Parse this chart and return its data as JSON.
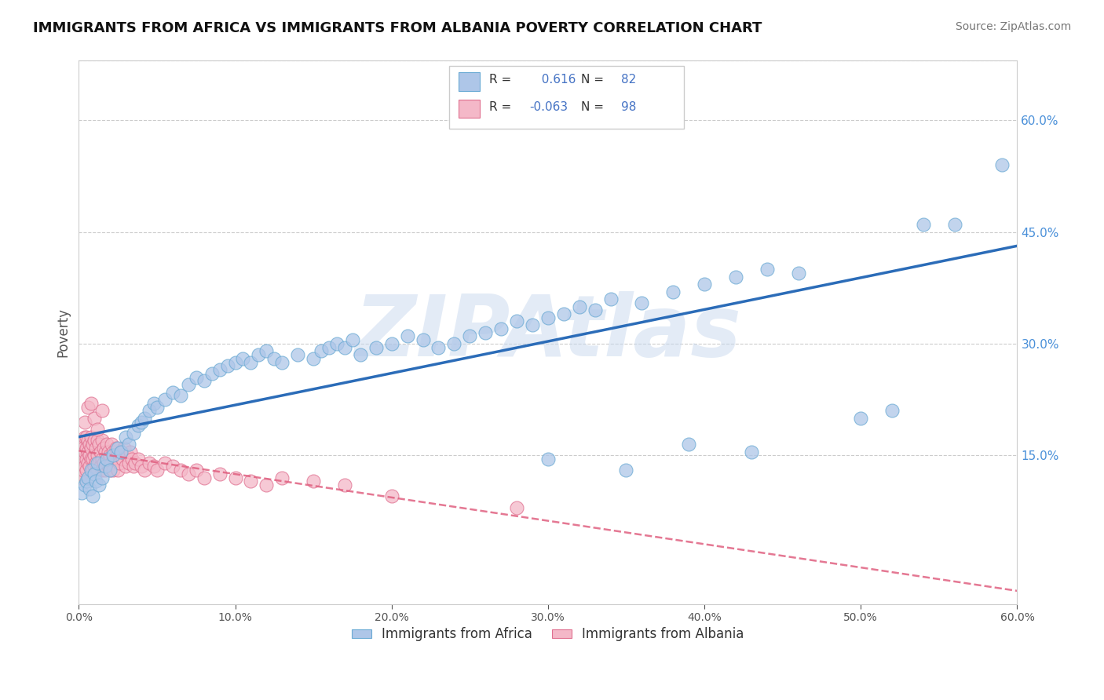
{
  "title": "IMMIGRANTS FROM AFRICA VS IMMIGRANTS FROM ALBANIA POVERTY CORRELATION CHART",
  "source": "Source: ZipAtlas.com",
  "ylabel": "Poverty",
  "watermark": "ZIPAtlas",
  "xlim": [
    0.0,
    0.6
  ],
  "ylim": [
    -0.05,
    0.68
  ],
  "xticks": [
    0.0,
    0.1,
    0.2,
    0.3,
    0.4,
    0.5,
    0.6
  ],
  "xtick_labels": [
    "0.0%",
    "10.0%",
    "20.0%",
    "30.0%",
    "40.0%",
    "50.0%",
    "60.0%"
  ],
  "yticks_right": [
    0.15,
    0.3,
    0.45,
    0.6
  ],
  "ytick_labels_right": [
    "15.0%",
    "30.0%",
    "45.0%",
    "60.0%"
  ],
  "africa_color": "#aec6e8",
  "africa_edge": "#6aaad4",
  "albania_color": "#f4b8c8",
  "albania_edge": "#e07090",
  "trendline_africa_color": "#2b6cb8",
  "trendline_albania_color": "#e06080",
  "legend_africa_label": "Immigrants from Africa",
  "legend_albania_label": "Immigrants from Albania",
  "africa_R": 0.616,
  "africa_N": 82,
  "albania_R": -0.063,
  "albania_N": 98,
  "background_color": "#ffffff",
  "grid_color": "#cccccc",
  "right_tick_color": "#4a90d9",
  "africa_scatter_x": [
    0.002,
    0.004,
    0.005,
    0.006,
    0.007,
    0.008,
    0.009,
    0.01,
    0.011,
    0.012,
    0.013,
    0.015,
    0.017,
    0.018,
    0.02,
    0.022,
    0.025,
    0.027,
    0.03,
    0.032,
    0.035,
    0.038,
    0.04,
    0.042,
    0.045,
    0.048,
    0.05,
    0.055,
    0.06,
    0.065,
    0.07,
    0.075,
    0.08,
    0.085,
    0.09,
    0.095,
    0.1,
    0.105,
    0.11,
    0.115,
    0.12,
    0.125,
    0.13,
    0.14,
    0.15,
    0.155,
    0.16,
    0.165,
    0.17,
    0.175,
    0.18,
    0.19,
    0.2,
    0.21,
    0.22,
    0.23,
    0.24,
    0.25,
    0.26,
    0.27,
    0.28,
    0.29,
    0.3,
    0.31,
    0.32,
    0.33,
    0.34,
    0.36,
    0.38,
    0.4,
    0.42,
    0.44,
    0.46,
    0.5,
    0.52,
    0.54,
    0.3,
    0.35,
    0.39,
    0.43,
    0.56,
    0.59
  ],
  "africa_scatter_y": [
    0.1,
    0.11,
    0.115,
    0.12,
    0.105,
    0.13,
    0.095,
    0.125,
    0.115,
    0.14,
    0.11,
    0.12,
    0.135,
    0.145,
    0.13,
    0.15,
    0.16,
    0.155,
    0.175,
    0.165,
    0.18,
    0.19,
    0.195,
    0.2,
    0.21,
    0.22,
    0.215,
    0.225,
    0.235,
    0.23,
    0.245,
    0.255,
    0.25,
    0.26,
    0.265,
    0.27,
    0.275,
    0.28,
    0.275,
    0.285,
    0.29,
    0.28,
    0.275,
    0.285,
    0.28,
    0.29,
    0.295,
    0.3,
    0.295,
    0.305,
    0.285,
    0.295,
    0.3,
    0.31,
    0.305,
    0.295,
    0.3,
    0.31,
    0.315,
    0.32,
    0.33,
    0.325,
    0.335,
    0.34,
    0.35,
    0.345,
    0.36,
    0.355,
    0.37,
    0.38,
    0.39,
    0.4,
    0.395,
    0.2,
    0.21,
    0.46,
    0.145,
    0.13,
    0.165,
    0.155,
    0.46,
    0.54
  ],
  "albania_scatter_x": [
    0.001,
    0.001,
    0.002,
    0.002,
    0.002,
    0.003,
    0.003,
    0.003,
    0.004,
    0.004,
    0.004,
    0.005,
    0.005,
    0.005,
    0.005,
    0.006,
    0.006,
    0.006,
    0.007,
    0.007,
    0.007,
    0.008,
    0.008,
    0.008,
    0.009,
    0.009,
    0.009,
    0.01,
    0.01,
    0.01,
    0.011,
    0.011,
    0.012,
    0.012,
    0.012,
    0.013,
    0.013,
    0.014,
    0.014,
    0.015,
    0.015,
    0.015,
    0.016,
    0.016,
    0.017,
    0.017,
    0.018,
    0.018,
    0.019,
    0.019,
    0.02,
    0.02,
    0.021,
    0.021,
    0.022,
    0.022,
    0.023,
    0.024,
    0.025,
    0.025,
    0.026,
    0.027,
    0.028,
    0.029,
    0.03,
    0.031,
    0.032,
    0.033,
    0.034,
    0.035,
    0.036,
    0.038,
    0.04,
    0.042,
    0.045,
    0.048,
    0.05,
    0.055,
    0.06,
    0.065,
    0.07,
    0.075,
    0.08,
    0.09,
    0.1,
    0.11,
    0.12,
    0.13,
    0.15,
    0.17,
    0.004,
    0.006,
    0.008,
    0.01,
    0.012,
    0.015,
    0.2,
    0.28
  ],
  "albania_scatter_y": [
    0.12,
    0.14,
    0.125,
    0.15,
    0.165,
    0.13,
    0.145,
    0.16,
    0.135,
    0.155,
    0.175,
    0.13,
    0.145,
    0.16,
    0.175,
    0.14,
    0.155,
    0.17,
    0.135,
    0.15,
    0.165,
    0.145,
    0.16,
    0.175,
    0.13,
    0.145,
    0.165,
    0.135,
    0.15,
    0.17,
    0.14,
    0.16,
    0.13,
    0.15,
    0.17,
    0.14,
    0.165,
    0.135,
    0.155,
    0.13,
    0.145,
    0.17,
    0.14,
    0.16,
    0.13,
    0.155,
    0.14,
    0.165,
    0.135,
    0.155,
    0.13,
    0.15,
    0.14,
    0.165,
    0.13,
    0.155,
    0.145,
    0.16,
    0.13,
    0.15,
    0.14,
    0.155,
    0.145,
    0.16,
    0.135,
    0.15,
    0.14,
    0.155,
    0.145,
    0.135,
    0.14,
    0.145,
    0.135,
    0.13,
    0.14,
    0.135,
    0.13,
    0.14,
    0.135,
    0.13,
    0.125,
    0.13,
    0.12,
    0.125,
    0.12,
    0.115,
    0.11,
    0.12,
    0.115,
    0.11,
    0.195,
    0.215,
    0.22,
    0.2,
    0.185,
    0.21,
    0.095,
    0.08
  ]
}
